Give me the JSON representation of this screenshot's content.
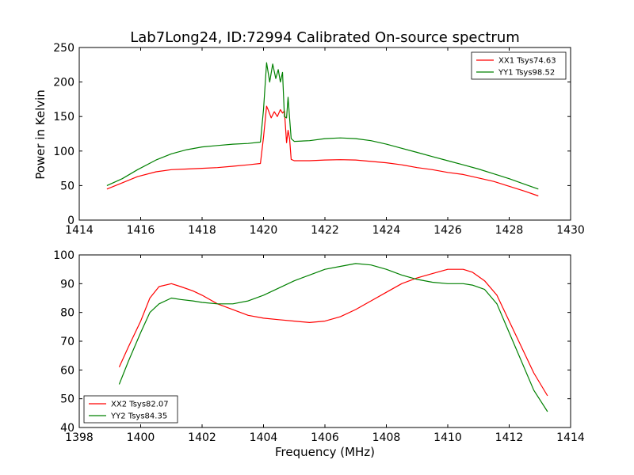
{
  "figure_title": "Lab7Long24, ID:72994 Calibrated On-source spectrum",
  "chart_data": [
    {
      "type": "line",
      "title": "",
      "xlabel": "",
      "ylabel": "Power in Kelvin",
      "xlim": [
        1414,
        1430
      ],
      "ylim": [
        0,
        250
      ],
      "xticks": [
        1414,
        1416,
        1418,
        1420,
        1422,
        1424,
        1426,
        1428,
        1430
      ],
      "yticks": [
        0,
        50,
        100,
        150,
        200,
        250
      ],
      "grid": false,
      "legend_placement": "top-right",
      "series": [
        {
          "name": "XX1 Tsys74.63",
          "color": "#ff0000",
          "x": [
            1414.9,
            1415.4,
            1415.9,
            1416.5,
            1417.0,
            1417.5,
            1418.0,
            1418.5,
            1419.0,
            1419.5,
            1419.9,
            1420.0,
            1420.1,
            1420.15,
            1420.25,
            1420.35,
            1420.45,
            1420.55,
            1420.62,
            1420.68,
            1420.75,
            1420.8,
            1420.85,
            1420.9,
            1421.0,
            1421.5,
            1422.0,
            1422.5,
            1423.0,
            1423.5,
            1424.0,
            1424.5,
            1425.0,
            1425.5,
            1426.0,
            1426.5,
            1427.0,
            1427.5,
            1428.0,
            1428.5,
            1428.95
          ],
          "y": [
            45,
            54,
            63,
            70,
            73,
            74,
            75,
            76,
            78,
            80,
            82,
            120,
            165,
            160,
            148,
            157,
            150,
            160,
            155,
            158,
            112,
            130,
            118,
            88,
            86,
            86,
            87,
            87.5,
            87,
            85,
            83,
            80,
            76,
            73,
            69,
            66,
            61,
            56,
            49,
            42,
            35
          ]
        },
        {
          "name": "YY1 Tsys98.52",
          "color": "#008000",
          "x": [
            1414.9,
            1415.4,
            1415.9,
            1416.5,
            1417.0,
            1417.5,
            1418.0,
            1418.5,
            1419.0,
            1419.5,
            1419.9,
            1420.0,
            1420.1,
            1420.2,
            1420.3,
            1420.4,
            1420.48,
            1420.55,
            1420.62,
            1420.68,
            1420.75,
            1420.8,
            1420.85,
            1420.9,
            1421.0,
            1421.5,
            1422.0,
            1422.5,
            1423.0,
            1423.5,
            1424.0,
            1424.5,
            1425.0,
            1425.5,
            1426.0,
            1426.5,
            1427.0,
            1427.5,
            1428.0,
            1428.5,
            1428.95
          ],
          "y": [
            50,
            60,
            73,
            87,
            96,
            102,
            106,
            108,
            110,
            111,
            113,
            160,
            228,
            200,
            226,
            205,
            218,
            200,
            214,
            150,
            148,
            178,
            148,
            118,
            114,
            115,
            118,
            119,
            118,
            115,
            110,
            104,
            98,
            92,
            86,
            80,
            74,
            67,
            60,
            52,
            45
          ]
        }
      ]
    },
    {
      "type": "line",
      "title": "",
      "xlabel": "Frequency (MHz)",
      "ylabel": "",
      "xlim": [
        1398,
        1414
      ],
      "ylim": [
        40,
        100
      ],
      "xticks": [
        1398,
        1400,
        1402,
        1404,
        1406,
        1408,
        1410,
        1412,
        1414
      ],
      "yticks": [
        40,
        50,
        60,
        70,
        80,
        90,
        100
      ],
      "grid": false,
      "legend_placement": "bottom-left",
      "series": [
        {
          "name": "XX2 Tsys82.07",
          "color": "#ff0000",
          "x": [
            1399.3,
            1399.6,
            1400.0,
            1400.3,
            1400.6,
            1401.0,
            1401.3,
            1401.7,
            1402.0,
            1402.5,
            1403.0,
            1403.5,
            1404.0,
            1404.5,
            1405.0,
            1405.5,
            1406.0,
            1406.5,
            1407.0,
            1407.5,
            1408.0,
            1408.5,
            1409.0,
            1409.5,
            1410.0,
            1410.5,
            1410.8,
            1411.2,
            1411.6,
            1412.0,
            1412.4,
            1412.8,
            1413.25
          ],
          "y": [
            61,
            68,
            77,
            85,
            89,
            90,
            89,
            87.5,
            86,
            83,
            81,
            79,
            78,
            77.5,
            77,
            76.5,
            77,
            78.5,
            81,
            84,
            87,
            90,
            92,
            93.5,
            95,
            95,
            94,
            91,
            86,
            77,
            68,
            59,
            51
          ]
        },
        {
          "name": "YY2 Tsys84.35",
          "color": "#008000",
          "x": [
            1399.3,
            1399.6,
            1400.0,
            1400.3,
            1400.6,
            1401.0,
            1401.3,
            1401.7,
            1402.0,
            1402.5,
            1403.0,
            1403.5,
            1404.0,
            1404.5,
            1405.0,
            1405.5,
            1406.0,
            1406.5,
            1407.0,
            1407.5,
            1408.0,
            1408.5,
            1409.0,
            1409.5,
            1410.0,
            1410.5,
            1410.8,
            1411.2,
            1411.6,
            1412.0,
            1412.4,
            1412.8,
            1413.25
          ],
          "y": [
            55,
            63,
            73,
            80,
            83,
            85,
            84.5,
            84,
            83.5,
            83,
            83,
            84,
            86,
            88.5,
            91,
            93,
            95,
            96,
            97,
            96.5,
            95,
            93,
            91.5,
            90.5,
            90,
            90,
            89.5,
            88,
            83,
            73,
            63,
            53,
            45.5
          ]
        }
      ]
    }
  ]
}
